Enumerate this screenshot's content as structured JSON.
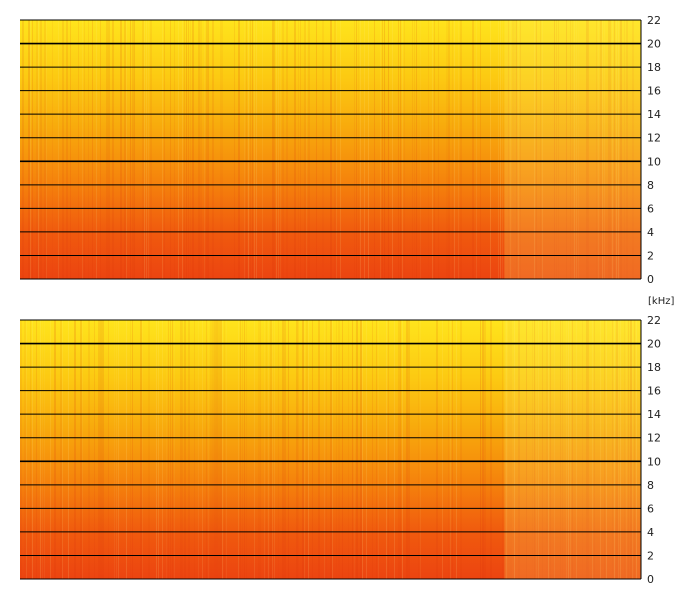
{
  "chart_data": [
    {
      "type": "heatmap",
      "name": "spectrogram-top",
      "ylim": [
        0,
        22
      ],
      "y_ticks": [
        0,
        2,
        4,
        6,
        8,
        10,
        12,
        14,
        16,
        18,
        20,
        22
      ],
      "y_tick_labels": [
        "0",
        "2",
        "4",
        "6",
        "8",
        "10",
        "12",
        "14",
        "16",
        "18",
        "20",
        "22"
      ],
      "ylabel": "",
      "grid": true,
      "colors": {
        "low_freq": "#ef4a10",
        "mid_freq": "#f7a50b",
        "high_freq": "#ffe218"
      }
    },
    {
      "type": "heatmap",
      "name": "spectrogram-bottom",
      "ylim": [
        0,
        22
      ],
      "y_ticks": [
        0,
        2,
        4,
        6,
        8,
        10,
        12,
        14,
        16,
        18,
        20,
        22
      ],
      "y_tick_labels": [
        "0",
        "2",
        "4",
        "6",
        "8",
        "10",
        "12",
        "14",
        "16",
        "18",
        "20",
        "22"
      ],
      "ylabel": "[kHz]",
      "grid": true,
      "colors": {
        "low_freq": "#ef4a10",
        "mid_freq": "#f7a50b",
        "high_freq": "#ffe218"
      }
    }
  ],
  "unit_label": "[kHz]"
}
